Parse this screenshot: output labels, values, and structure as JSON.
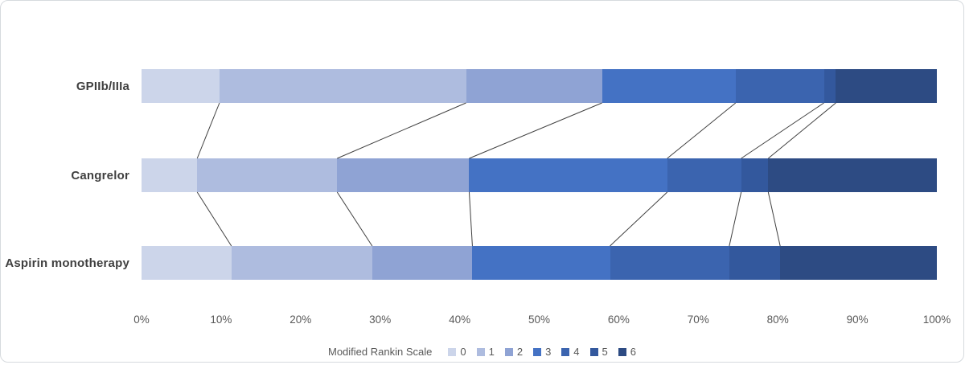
{
  "chart_data": {
    "type": "bar",
    "subtype": "horizontal-stacked-100pct",
    "title": "",
    "legend_title": "Modified Rankin Scale",
    "legend_labels": [
      "0",
      "1",
      "2",
      "3",
      "4",
      "5",
      "6"
    ],
    "legend_position": "bottom-center",
    "categories": [
      "GPIIb/IIIa",
      "Cangrelor",
      "Aspirin monotherapy"
    ],
    "series": [
      {
        "name": "GPIIb/IIIa",
        "values": [
          9.8,
          31.0,
          17.1,
          16.8,
          11.1,
          1.5,
          12.7
        ]
      },
      {
        "name": "Cangrelor",
        "values": [
          7.0,
          17.6,
          16.6,
          24.9,
          9.3,
          3.4,
          21.2
        ]
      },
      {
        "name": "Aspirin monotherapy",
        "values": [
          11.3,
          17.7,
          12.6,
          17.3,
          15.0,
          6.4,
          19.7
        ]
      }
    ],
    "x_ticks": [
      "0%",
      "10%",
      "20%",
      "30%",
      "40%",
      "50%",
      "60%",
      "70%",
      "80%",
      "90%",
      "100%"
    ],
    "xlim": [
      0,
      100
    ],
    "grid": false,
    "connector_lines": true,
    "colors": {
      "segments": [
        "#ccd5ea",
        "#aebcdf",
        "#8fa3d4",
        "#4472c4",
        "#3b64af",
        "#33589d",
        "#2d4b83"
      ],
      "connector": "#404040",
      "axis_text": "#595959",
      "category_text": "#3f3f3f",
      "card_border": "#d6dade"
    }
  }
}
